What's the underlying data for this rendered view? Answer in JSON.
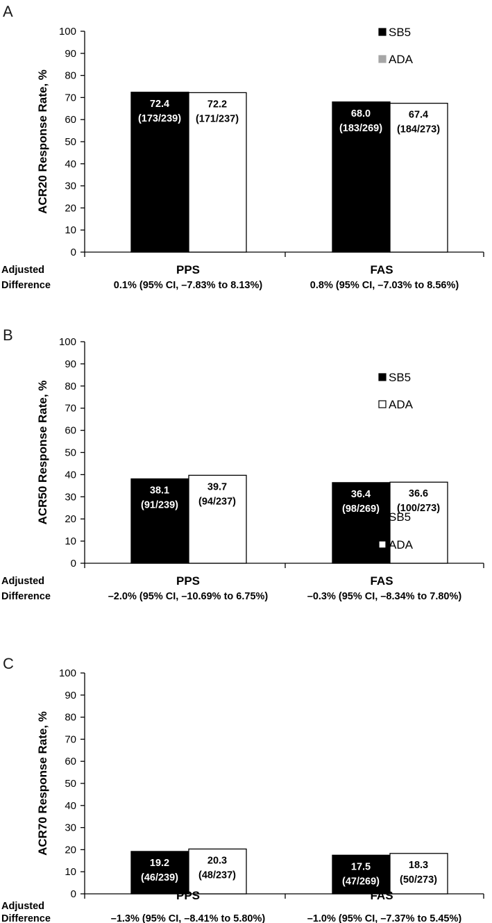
{
  "colors": {
    "sb5": "#000000",
    "ada": "#ffffff",
    "ada_legend_panel_a": "#a6a6a6",
    "axis": "#000000"
  },
  "adjusted_label": [
    "Adjusted",
    "Difference"
  ],
  "chart_data": [
    {
      "type": "bar",
      "panel": "A",
      "ylabel": "ACR20 Response Rate, %",
      "ylim": [
        0,
        100
      ],
      "yticks": [
        0,
        10,
        20,
        30,
        40,
        50,
        60,
        70,
        80,
        90,
        100
      ],
      "categories": [
        "PPS",
        "FAS"
      ],
      "legend": [
        "SB5",
        "ADA"
      ],
      "ada_legend_style": "gray",
      "series": [
        {
          "name": "SB5",
          "values": [
            72.4,
            68.0
          ],
          "labels": [
            "72.4",
            "68.0"
          ],
          "counts": [
            "(173/239)",
            "(183/269)"
          ]
        },
        {
          "name": "ADA",
          "values": [
            72.2,
            67.4
          ],
          "labels": [
            "72.2",
            "67.4"
          ],
          "counts": [
            "(171/237)",
            "(184/273)"
          ]
        }
      ],
      "adjusted_difference": [
        "0.1% (95% CI, –7.83% to 8.13%)",
        "0.8% (95% CI, –7.03% to 8.56%)"
      ]
    },
    {
      "type": "bar",
      "panel": "B",
      "ylabel": "ACR50 Response Rate, %",
      "ylim": [
        0,
        100
      ],
      "yticks": [
        0,
        10,
        20,
        30,
        40,
        50,
        60,
        70,
        80,
        90,
        100
      ],
      "categories": [
        "PPS",
        "FAS"
      ],
      "legend": [
        "SB5",
        "ADA"
      ],
      "ada_legend_style": "outline",
      "series": [
        {
          "name": "SB5",
          "values": [
            38.1,
            36.4
          ],
          "labels": [
            "38.1",
            "36.4"
          ],
          "counts": [
            "(91/239)",
            "(98/269)"
          ]
        },
        {
          "name": "ADA",
          "values": [
            39.7,
            36.6
          ],
          "labels": [
            "39.7",
            "36.6"
          ],
          "counts": [
            "(94/237)",
            "(100/273)"
          ]
        }
      ],
      "adjusted_difference": [
        "–2.0% (95% CI, –10.69% to 6.75%)",
        "–0.3% (95% CI, –8.34% to 7.80%)"
      ]
    },
    {
      "type": "bar",
      "panel": "C",
      "ylabel": "ACR70 Response Rate, %",
      "ylim": [
        0,
        100
      ],
      "yticks": [
        0,
        10,
        20,
        30,
        40,
        50,
        60,
        70,
        80,
        90,
        100
      ],
      "categories": [
        "PPS",
        "FAS"
      ],
      "legend": [
        "SB5",
        "ADA"
      ],
      "ada_legend_style": "outline",
      "series": [
        {
          "name": "SB5",
          "values": [
            19.2,
            17.5
          ],
          "labels": [
            "19.2",
            "17.5"
          ],
          "counts": [
            "(46/239)",
            "(47/269)"
          ]
        },
        {
          "name": "ADA",
          "values": [
            20.3,
            18.3
          ],
          "labels": [
            "20.3",
            "18.3"
          ],
          "counts": [
            "(48/237)",
            "(50/273)"
          ]
        }
      ],
      "adjusted_difference": [
        "–1.3% (95% CI, –8.41% to 5.80%)",
        "–1.0% (95% CI, –7.37% to 5.45%)"
      ]
    }
  ]
}
